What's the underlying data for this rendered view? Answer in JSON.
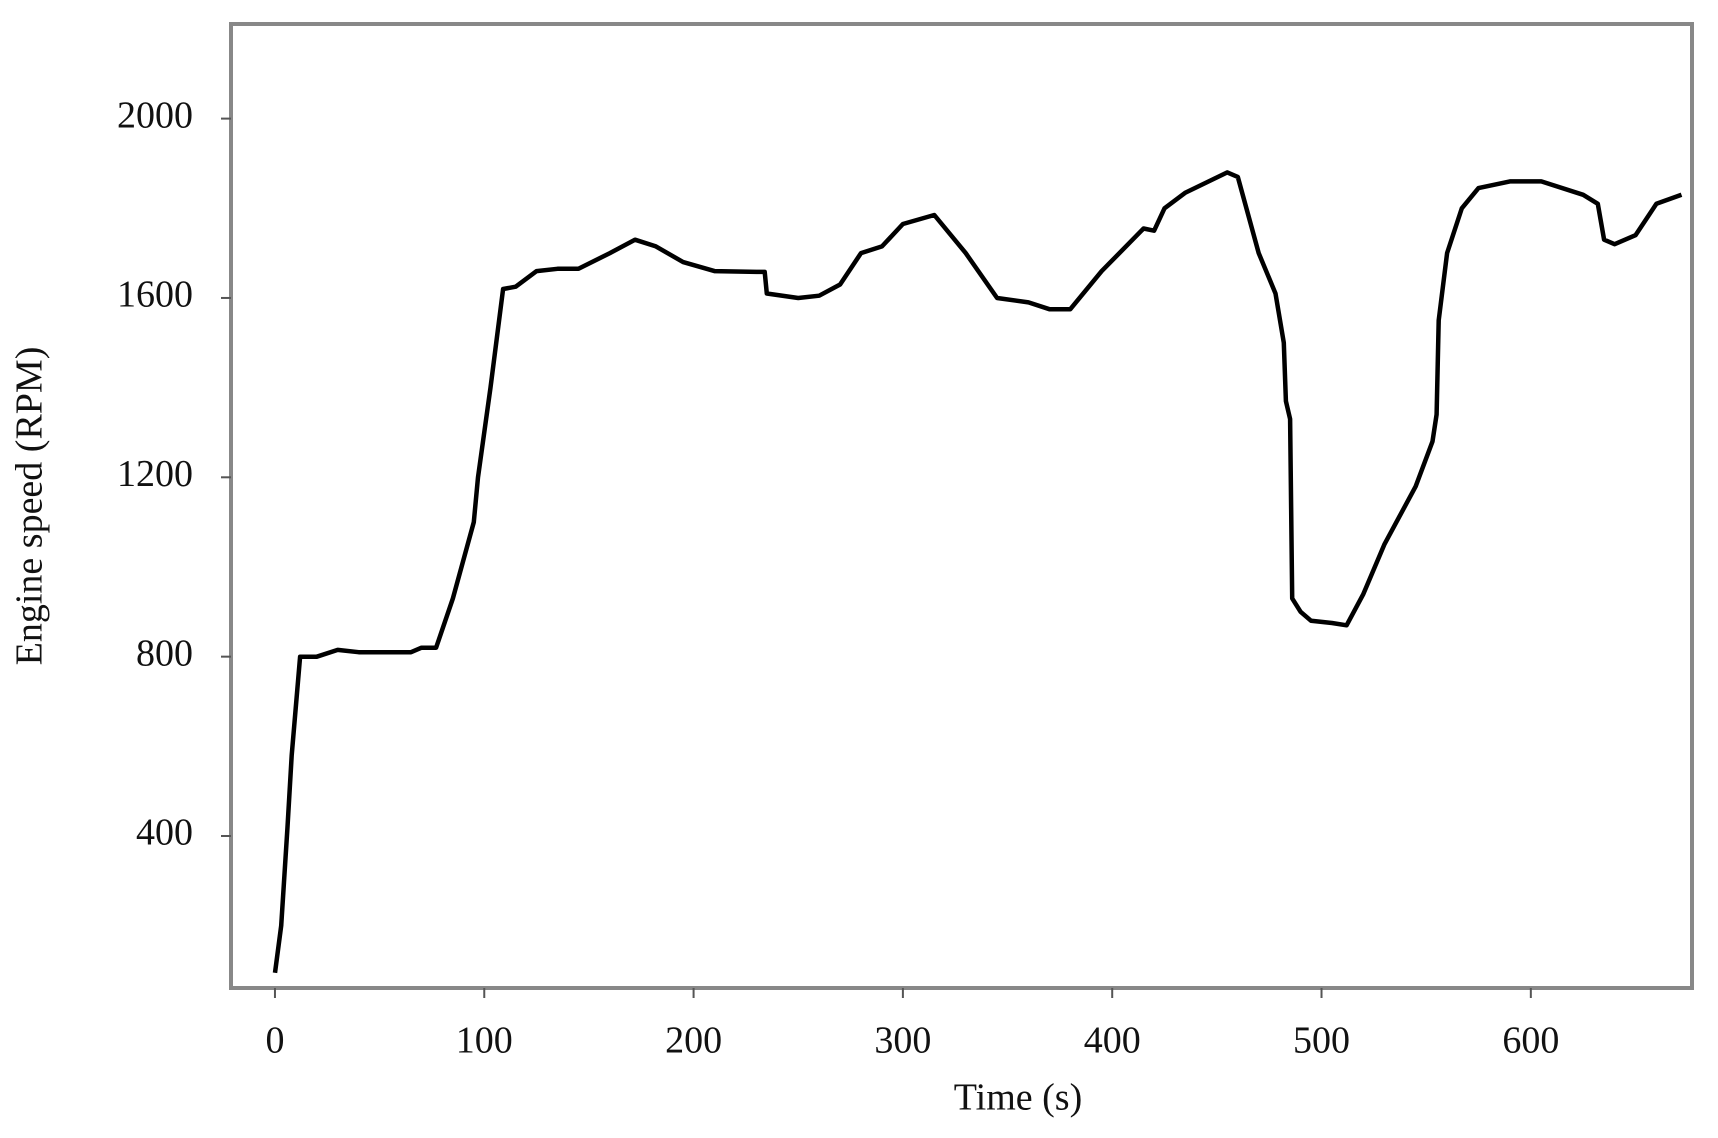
{
  "chart_data": {
    "type": "line",
    "x_label": "Time (s)",
    "y_label": "Engine speed  (RPM)",
    "x": [
      0,
      3,
      6,
      8,
      12,
      20,
      30,
      40,
      65,
      70,
      77,
      85,
      95,
      97,
      103,
      109,
      115,
      125,
      135,
      145,
      160,
      172,
      182,
      195,
      210,
      230,
      234,
      235,
      250,
      260,
      270,
      280,
      290,
      300,
      315,
      330,
      345,
      360,
      370,
      380,
      395,
      415,
      420,
      425,
      435,
      455,
      460,
      470,
      478,
      482,
      483,
      485,
      486,
      490,
      495,
      505,
      512,
      520,
      530,
      545,
      553,
      555,
      556,
      560,
      567,
      575,
      590,
      605,
      625,
      632,
      635,
      640,
      650,
      660,
      672
    ],
    "values": [
      95,
      200,
      420,
      580,
      800,
      800,
      815,
      810,
      810,
      820,
      820,
      930,
      1100,
      1200,
      1400,
      1620,
      1625,
      1660,
      1665,
      1665,
      1700,
      1730,
      1715,
      1680,
      1660,
      1658,
      1658,
      1610,
      1600,
      1605,
      1630,
      1700,
      1715,
      1765,
      1785,
      1700,
      1600,
      1590,
      1575,
      1575,
      1660,
      1755,
      1750,
      1800,
      1835,
      1880,
      1870,
      1700,
      1610,
      1500,
      1370,
      1330,
      930,
      900,
      880,
      875,
      870,
      940,
      1050,
      1180,
      1280,
      1340,
      1550,
      1700,
      1800,
      1845,
      1860,
      1860,
      1830,
      1810,
      1730,
      1720,
      1740,
      1810,
      1830
    ],
    "color": "#000000",
    "xlim": [
      -21,
      677
    ],
    "xticks": [
      0,
      100,
      200,
      300,
      400,
      500,
      600
    ],
    "ylim": [
      61,
      2211
    ],
    "yticks": [
      400,
      800,
      1200,
      1600,
      2000
    ],
    "grid": false
  }
}
